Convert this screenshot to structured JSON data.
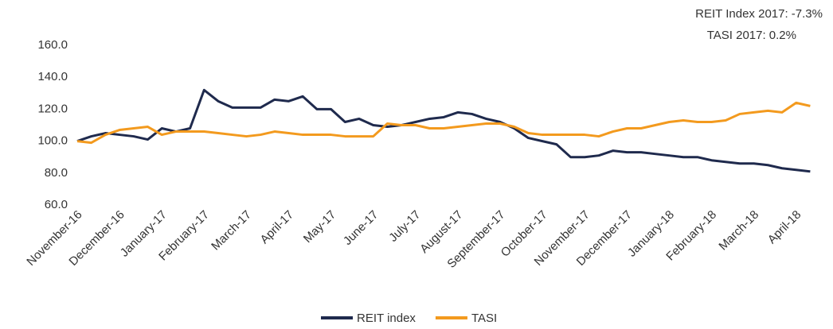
{
  "chart_data": {
    "type": "line",
    "annotations": [
      "REIT Index 2017: -7.3%",
      "TASI 2017: 0.2%"
    ],
    "categories": [
      "November-16",
      null,
      null,
      "December-16",
      null,
      null,
      "January-17",
      null,
      null,
      "February-17",
      null,
      null,
      "March-17",
      null,
      null,
      "April-17",
      null,
      null,
      "May-17",
      null,
      null,
      "June-17",
      null,
      null,
      "July-17",
      null,
      null,
      "August-17",
      null,
      null,
      "September-17",
      null,
      null,
      "October-17",
      null,
      null,
      "November-17",
      null,
      null,
      "December-17",
      null,
      null,
      "January-18",
      null,
      null,
      "February-18",
      null,
      null,
      "March-18",
      null,
      null,
      "April-18",
      null
    ],
    "series": [
      {
        "name": "REIT index",
        "color": "#1f2a4d",
        "values": [
          100,
          103,
          105,
          104,
          103,
          101,
          108,
          106,
          108,
          132,
          125,
          121,
          121,
          121,
          126,
          125,
          128,
          120,
          120,
          112,
          114,
          110,
          109,
          110,
          112,
          114,
          115,
          118,
          117,
          114,
          112,
          108,
          102,
          100,
          98,
          90,
          90,
          91,
          94,
          93,
          93,
          92,
          91,
          90,
          90,
          88,
          87,
          86,
          86,
          85,
          83,
          82,
          81
        ]
      },
      {
        "name": "TASI",
        "color": "#f39a1e",
        "values": [
          100,
          99,
          104,
          107,
          108,
          109,
          104,
          106,
          106,
          106,
          105,
          104,
          103,
          104,
          106,
          105,
          104,
          104,
          104,
          103,
          103,
          103,
          111,
          110,
          110,
          108,
          108,
          109,
          110,
          111,
          111,
          109,
          105,
          104,
          104,
          104,
          104,
          103,
          106,
          108,
          108,
          110,
          112,
          113,
          112,
          112,
          113,
          117,
          118,
          119,
          118,
          124,
          122
        ]
      }
    ],
    "ylim": [
      60,
      160
    ],
    "yticks": [
      {
        "value": 60,
        "label": "60.0"
      },
      {
        "value": 80,
        "label": "80.0"
      },
      {
        "value": 100,
        "label": "100.0"
      },
      {
        "value": 120,
        "label": "120.0"
      },
      {
        "value": 140,
        "label": "140.0"
      },
      {
        "value": 160,
        "label": "160.0"
      }
    ],
    "grid": false,
    "legend": "bottom"
  }
}
